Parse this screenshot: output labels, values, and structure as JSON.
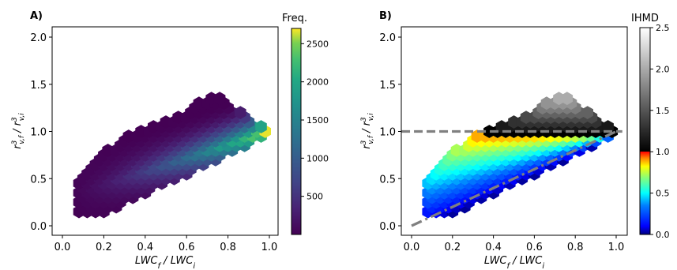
{
  "chart_data": [
    {
      "type": "hexbin",
      "panel_label": "A)",
      "xlabel_main": "LWC",
      "xlabel_sub_num": "f",
      "xlabel_sep": " / LWC",
      "xlabel_sub_den": "i",
      "ylabel_main": "r",
      "ylabel_sup": "3",
      "ylabel_sub_num": "v,f",
      "ylabel_sep": " / r",
      "ylabel_sub_den": "v,i",
      "xlim": [
        -0.05,
        1.03
      ],
      "ylim": [
        -0.07,
        2.1
      ],
      "xticks": [
        "0.0",
        "0.2",
        "0.4",
        "0.6",
        "0.8",
        "1.0"
      ],
      "yticks": [
        "0.0",
        "0.5",
        "1.0",
        "1.5",
        "2.0"
      ],
      "colorbar": {
        "title": "Freq.",
        "range": [
          0,
          2700
        ],
        "ticks": [
          "500",
          "1000",
          "1500",
          "2000",
          "2500"
        ],
        "colormap": "viridis"
      }
    },
    {
      "type": "hexbin",
      "panel_label": "B)",
      "xlabel_main": "LWC",
      "xlabel_sub_num": "f",
      "xlabel_sep": " / LWC",
      "xlabel_sub_den": "i",
      "ylabel_main": "r",
      "ylabel_sup": "3",
      "ylabel_sub_num": "v,f",
      "ylabel_sep": " / r",
      "ylabel_sub_den": "v,i",
      "xlim": [
        -0.05,
        1.03
      ],
      "ylim": [
        -0.07,
        2.1
      ],
      "xticks": [
        "0.0",
        "0.2",
        "0.4",
        "0.6",
        "0.8",
        "1.0"
      ],
      "yticks": [
        "0.0",
        "0.5",
        "1.0",
        "1.5",
        "2.0"
      ],
      "reference_lines": [
        {
          "style": "dashed",
          "color": "#808080",
          "points": [
            [
              -0.05,
              1.0
            ],
            [
              1.03,
              1.0
            ]
          ]
        },
        {
          "style": "dashdot",
          "color": "#808080",
          "points": [
            [
              0.0,
              0.0
            ],
            [
              1.0,
              1.0
            ]
          ]
        }
      ],
      "colorbar": {
        "title": "IHMD",
        "range": [
          0.0,
          2.5
        ],
        "ticks": [
          "0.0",
          "0.5",
          "1.0",
          "1.5",
          "2.0",
          "2.5"
        ],
        "colormap": "jet below 1.0, gray (black to white) above 1.0"
      }
    }
  ]
}
